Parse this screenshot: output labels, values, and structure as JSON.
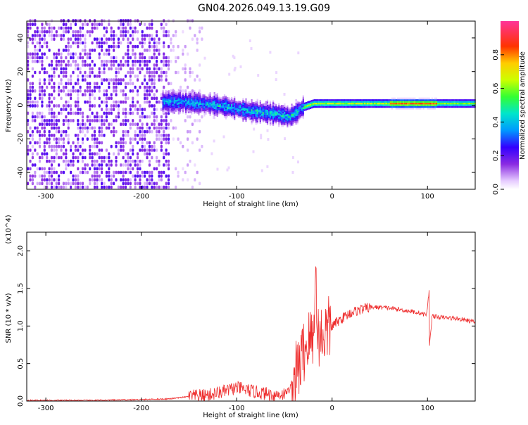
{
  "title": "GN04.2026.049.13.19.G09",
  "chart_data": [
    {
      "type": "heatmap",
      "xlabel": "Height of straight line (km)",
      "ylabel": "Frequency (Hz)",
      "xlim": [
        -320,
        150
      ],
      "ylim": [
        -50,
        50
      ],
      "x_ticks": [
        -300,
        -200,
        -100,
        0,
        100
      ],
      "y_ticks": [
        -40,
        -20,
        0,
        20,
        40
      ],
      "colorbar": {
        "label": "Normalized spectral amplitude",
        "range": [
          0,
          1
        ],
        "ticks": [
          "0.0",
          "0.2",
          "0.4",
          "0.6",
          "0.8"
        ]
      },
      "ridge": {
        "x": [
          -175,
          -160,
          -140,
          -120,
          -100,
          -80,
          -60,
          -45,
          -40,
          -30,
          -20,
          0,
          50,
          100,
          150
        ],
        "y": [
          2,
          2,
          1,
          0,
          -2,
          -4,
          -5,
          -7,
          -5,
          -1,
          1,
          1,
          1,
          1,
          1
        ]
      }
    },
    {
      "type": "line",
      "xlabel": "Height of straight line (km)",
      "ylabel": "SNR (10 * v/v)",
      "y_multiplier": "(x10^4)",
      "xlim": [
        -320,
        150
      ],
      "ylim": [
        0,
        2.25
      ],
      "x_ticks": [
        -300,
        -200,
        -100,
        0,
        100
      ],
      "y_ticks": [
        "0.0",
        "0.5",
        "1.0",
        "1.5",
        "2.0"
      ],
      "series": [
        {
          "color": "#ee2c2c",
          "x": [
            -320,
            -250,
            -200,
            -170,
            -150,
            -130,
            -115,
            -100,
            -90,
            -80,
            -70,
            -60,
            -50,
            -45,
            -40,
            -35,
            -30,
            -25,
            -20,
            -15,
            -10,
            -5,
            0,
            10,
            20,
            30,
            40,
            50,
            60,
            70,
            80,
            90,
            95,
            100,
            105,
            110,
            120,
            130,
            140,
            150
          ],
          "y": [
            0.01,
            0.01,
            0.02,
            0.03,
            0.06,
            0.08,
            0.12,
            0.18,
            0.15,
            0.12,
            0.1,
            0.08,
            0.1,
            0.15,
            0.3,
            0.45,
            0.65,
            0.8,
            0.85,
            0.9,
            0.88,
            0.95,
            1.0,
            1.1,
            1.18,
            1.22,
            1.25,
            1.25,
            1.24,
            1.22,
            1.2,
            1.18,
            1.16,
            1.15,
            1.14,
            1.12,
            1.11,
            1.1,
            1.08,
            1.05
          ]
        }
      ]
    }
  ]
}
